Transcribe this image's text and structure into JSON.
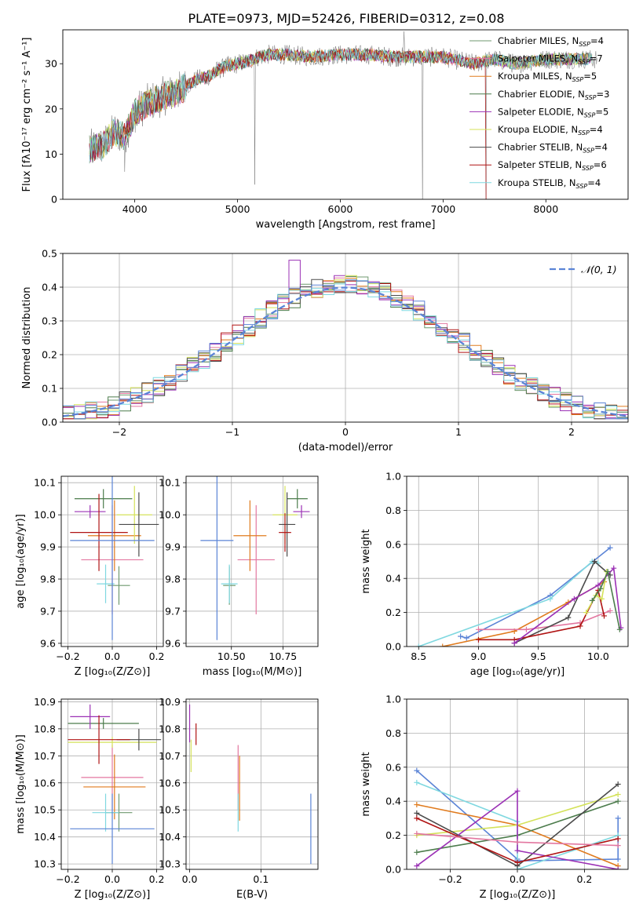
{
  "title": "PLATE=0973, MJD=52426, FIBERID=0312, z=0.08",
  "colors": {
    "Chabrier MILES": "#6f9a6f",
    "Salpeter MILES": "#e377a0",
    "Kroupa MILES": "#e07b1e",
    "Chabrier ELODIE": "#4c7c4c",
    "Salpeter ELODIE": "#9b31b5",
    "Kroupa ELODIE": "#d4e25a",
    "Chabrier STELIB": "#4a4a4a",
    "Salpeter STELIB": "#b01313",
    "Kroupa STELIB": "#7fd8e0",
    "blue_model": "#5b84d6"
  },
  "chart_data": [
    {
      "id": "spectrum",
      "type": "line",
      "title": "PLATE=0973, MJD=52426, FIBERID=0312, z=0.08",
      "xlabel": "wavelength [Angstrom, rest frame]",
      "ylabel": "Flux [fλ10⁻¹⁷ erg cm⁻² s⁻¹ A⁻¹]",
      "xlim": [
        3300,
        8800
      ],
      "ylim": [
        0,
        37.5
      ],
      "xticks": [
        4000,
        5000,
        6000,
        7000,
        8000
      ],
      "yticks": [
        0,
        10,
        20,
        30
      ],
      "grid": false,
      "legend_position": "upper right",
      "legend": [
        {
          "label": "Chabrier MILES, N",
          "sub": "SSP",
          "suffix": "=4"
        },
        {
          "label": "Salpeter MILES, N",
          "sub": "SSP",
          "suffix": "=7"
        },
        {
          "label": "Kroupa MILES, N",
          "sub": "SSP",
          "suffix": "=5"
        },
        {
          "label": "Chabrier ELODIE, N",
          "sub": "SSP",
          "suffix": "=3"
        },
        {
          "label": "Salpeter ELODIE, N",
          "sub": "SSP",
          "suffix": "=5"
        },
        {
          "label": "Kroupa ELODIE, N",
          "sub": "SSP",
          "suffix": "=4"
        },
        {
          "label": "Chabrier STELIB, N",
          "sub": "SSP",
          "suffix": "=4"
        },
        {
          "label": "Salpeter STELIB, N",
          "sub": "SSP",
          "suffix": "=6"
        },
        {
          "label": "Kroupa STELIB, N",
          "sub": "SSP",
          "suffix": "=4"
        }
      ],
      "continuum": [
        [
          3550,
          11
        ],
        [
          3700,
          12
        ],
        [
          3800,
          15
        ],
        [
          3900,
          14
        ],
        [
          4000,
          19
        ],
        [
          4100,
          21
        ],
        [
          4200,
          22
        ],
        [
          4300,
          23
        ],
        [
          4400,
          23.5
        ],
        [
          4500,
          25
        ],
        [
          4600,
          26.5
        ],
        [
          4700,
          27
        ],
        [
          4800,
          28.5
        ],
        [
          4900,
          29.5
        ],
        [
          5000,
          30
        ],
        [
          5100,
          30.5
        ],
        [
          5200,
          31.5
        ],
        [
          5300,
          32
        ],
        [
          5500,
          32
        ],
        [
          5700,
          31.5
        ],
        [
          6000,
          32
        ],
        [
          6300,
          32
        ],
        [
          6500,
          31.5
        ],
        [
          6700,
          31.5
        ],
        [
          7000,
          31.5
        ],
        [
          7200,
          30.5
        ],
        [
          7300,
          30
        ],
        [
          7500,
          31
        ],
        [
          7700,
          30
        ],
        [
          8000,
          31
        ],
        [
          8500,
          31
        ]
      ],
      "spikes": [
        [
          3900,
          -12
        ],
        [
          5170,
          -26
        ],
        [
          6800,
          -37
        ],
        [
          7420,
          -37
        ],
        [
          6620,
          6
        ]
      ]
    },
    {
      "id": "residuals",
      "type": "histogram",
      "xlabel": "(data-model)/error",
      "ylabel": "Normed distribution",
      "xlim": [
        -2.5,
        2.5
      ],
      "ylim": [
        0,
        0.5
      ],
      "xticks": [
        -2,
        -1,
        0,
        1,
        2
      ],
      "yticks": [
        0.0,
        0.1,
        0.2,
        0.3,
        0.4,
        0.5
      ],
      "grid": true,
      "legend_position": "upper right",
      "legend_label": "𝒩(0, 1)",
      "bins": 50
    },
    {
      "id": "age_vs_Z",
      "type": "errorbar",
      "xlabel": "Z [log₁₀(Z/Z⊙)]",
      "ylabel": "age  [log₁₀(age/yr)]",
      "xlim": [
        -0.23,
        0.23
      ],
      "ylim": [
        9.59,
        10.12
      ],
      "xticks": [
        -0.2,
        0.0,
        0.2
      ],
      "yticks": [
        9.6,
        9.7,
        9.8,
        9.9,
        10.0,
        10.1
      ],
      "grid": true,
      "points": [
        {
          "model": "Chabrier MILES",
          "x": 0.03,
          "xerr": 0.05,
          "y": 9.78,
          "yerr": 0.06
        },
        {
          "model": "Salpeter MILES",
          "x": 0.0,
          "xerr": 0.14,
          "y": 9.86,
          "yerr": 0.17
        },
        {
          "model": "Kroupa MILES",
          "x": 0.01,
          "xerr": 0.12,
          "y": 9.935,
          "yerr": 0.11
        },
        {
          "model": "Chabrier ELODIE",
          "x": -0.04,
          "xerr": 0.13,
          "y": 10.05,
          "yerr": 0.03
        },
        {
          "model": "Salpeter ELODIE",
          "x": -0.1,
          "xerr": 0.07,
          "y": 10.01,
          "yerr": 0.02
        },
        {
          "model": "Kroupa ELODIE",
          "x": 0.1,
          "xerr": 0.08,
          "y": 10.0,
          "yerr": 0.09
        },
        {
          "model": "Chabrier STELIB",
          "x": 0.12,
          "xerr": 0.09,
          "y": 9.97,
          "yerr": 0.1
        },
        {
          "model": "Salpeter STELIB",
          "x": -0.06,
          "xerr": 0.13,
          "y": 9.945,
          "yerr": 0.12
        },
        {
          "model": "Kroupa STELIB",
          "x": -0.03,
          "xerr": 0.04,
          "y": 9.785,
          "yerr": 0.06
        },
        {
          "model": "blue",
          "x": 0.0,
          "xerr": 0.19,
          "y": 9.92,
          "yerr": 0.31
        }
      ]
    },
    {
      "id": "age_vs_mass",
      "type": "errorbar",
      "xlabel": "mass [log₁₀(M/M⊙)]",
      "ylabel": "",
      "xlim": [
        10.28,
        10.92
      ],
      "ylim": [
        9.59,
        10.12
      ],
      "xticks": [
        10.5,
        10.75
      ],
      "yticks": [
        9.6,
        9.7,
        9.8,
        9.9,
        10.0,
        10.1
      ],
      "grid": true,
      "points": [
        {
          "model": "Chabrier MILES",
          "x": 10.49,
          "xerr": 0.03,
          "y": 9.78,
          "yerr": 0.06
        },
        {
          "model": "Salpeter MILES",
          "x": 10.62,
          "xerr": 0.09,
          "y": 9.86,
          "yerr": 0.17
        },
        {
          "model": "Kroupa MILES",
          "x": 10.59,
          "xerr": 0.08,
          "y": 9.935,
          "yerr": 0.11
        },
        {
          "model": "Chabrier ELODIE",
          "x": 10.82,
          "xerr": 0.05,
          "y": 10.05,
          "yerr": 0.03
        },
        {
          "model": "Salpeter ELODIE",
          "x": 10.84,
          "xerr": 0.04,
          "y": 10.01,
          "yerr": 0.02
        },
        {
          "model": "Kroupa ELODIE",
          "x": 10.76,
          "xerr": 0.06,
          "y": 10.0,
          "yerr": 0.09
        },
        {
          "model": "Chabrier STELIB",
          "x": 10.77,
          "xerr": 0.04,
          "y": 9.97,
          "yerr": 0.1
        },
        {
          "model": "Salpeter STELIB",
          "x": 10.76,
          "xerr": 0.03,
          "y": 9.945,
          "yerr": 0.06
        },
        {
          "model": "Kroupa STELIB",
          "x": 10.49,
          "xerr": 0.04,
          "y": 9.785,
          "yerr": 0.06
        },
        {
          "model": "blue",
          "x": 10.43,
          "xerr": 0.08,
          "y": 9.92,
          "yerr": 0.31
        }
      ]
    },
    {
      "id": "massweight_vs_age",
      "type": "line",
      "xlabel": "age  [log₁₀(age/yr)]",
      "ylabel": "mass weight",
      "xlim": [
        8.4,
        10.25
      ],
      "ylim": [
        0,
        1
      ],
      "xticks": [
        8.5,
        9.0,
        9.5,
        10.0
      ],
      "yticks": [
        0.0,
        0.2,
        0.4,
        0.6,
        0.8,
        1.0
      ],
      "grid": true,
      "series": [
        {
          "model": "blue",
          "x": [
            8.85,
            8.9,
            9.6,
            10.1
          ],
          "y": [
            0.06,
            0.05,
            0.3,
            0.58
          ]
        },
        {
          "model": "Kroupa STELIB",
          "x": [
            8.5,
            9.6,
            9.95,
            10.0
          ],
          "y": [
            0.0,
            0.28,
            0.5,
            0.49
          ]
        },
        {
          "model": "Kroupa MILES",
          "x": [
            8.7,
            9.3,
            9.75,
            10.05
          ],
          "y": [
            0.0,
            0.09,
            0.26,
            0.38
          ]
        },
        {
          "model": "Salpeter MILES",
          "x": [
            9.0,
            9.4,
            9.85,
            10.1
          ],
          "y": [
            0.1,
            0.1,
            0.14,
            0.21
          ]
        },
        {
          "model": "Chabrier STELIB",
          "x": [
            9.3,
            9.75,
            9.97,
            10.1
          ],
          "y": [
            0.02,
            0.17,
            0.5,
            0.42
          ]
        },
        {
          "model": "Salpeter STELIB",
          "x": [
            9.0,
            9.3,
            9.85,
            10.0,
            10.05
          ],
          "y": [
            0.04,
            0.04,
            0.12,
            0.33,
            0.18
          ]
        },
        {
          "model": "Salpeter ELODIE",
          "x": [
            9.3,
            9.8,
            10.0,
            10.13,
            10.19
          ],
          "y": [
            0.02,
            0.28,
            0.36,
            0.46,
            0.11
          ]
        },
        {
          "model": "Kroupa ELODIE",
          "x": [
            9.9,
            9.98,
            10.03,
            10.07
          ],
          "y": [
            0.2,
            0.3,
            0.28,
            0.44
          ]
        },
        {
          "model": "Chabrier ELODIE",
          "x": [
            9.95,
            10.02,
            10.08,
            10.18
          ],
          "y": [
            0.27,
            0.34,
            0.44,
            0.1
          ]
        }
      ]
    },
    {
      "id": "mass_vs_Z",
      "type": "errorbar",
      "xlabel": "Z [log₁₀(Z/Z⊙)]",
      "ylabel": "mass [log₁₀(M/M⊙)]",
      "xlim": [
        -0.23,
        0.23
      ],
      "ylim": [
        10.28,
        10.91
      ],
      "xticks": [
        -0.2,
        0.0,
        0.2
      ],
      "yticks": [
        10.3,
        10.4,
        10.5,
        10.6,
        10.7,
        10.8,
        10.9
      ],
      "grid": true,
      "points": [
        {
          "model": "Chabrier MILES",
          "x": 0.03,
          "xerr": 0.06,
          "y": 10.49,
          "yerr": 0.07
        },
        {
          "model": "Salpeter MILES",
          "x": 0.0,
          "xerr": 0.14,
          "y": 10.62,
          "yerr": 0.12
        },
        {
          "model": "Kroupa MILES",
          "x": 0.01,
          "xerr": 0.14,
          "y": 10.585,
          "yerr": 0.12
        },
        {
          "model": "Chabrier ELODIE",
          "x": -0.04,
          "xerr": 0.16,
          "y": 10.82,
          "yerr": 0.02
        },
        {
          "model": "Salpeter ELODIE",
          "x": -0.1,
          "xerr": 0.09,
          "y": 10.845,
          "yerr": 0.045
        },
        {
          "model": "Kroupa ELODIE",
          "x": 0.0,
          "xerr": 0.2,
          "y": 10.75,
          "yerr": 0.02
        },
        {
          "model": "Chabrier STELIB",
          "x": 0.12,
          "xerr": 0.1,
          "y": 10.76,
          "yerr": 0.04
        },
        {
          "model": "Salpeter STELIB",
          "x": -0.06,
          "xerr": 0.14,
          "y": 10.76,
          "yerr": 0.09
        },
        {
          "model": "Kroupa STELIB",
          "x": -0.03,
          "xerr": 0.06,
          "y": 10.49,
          "yerr": 0.07
        },
        {
          "model": "blue",
          "x": 0.0,
          "xerr": 0.19,
          "y": 10.43,
          "yerr": 0.13
        }
      ]
    },
    {
      "id": "mass_vs_EBV",
      "type": "errorbar",
      "xlabel": "E(B-V)",
      "ylabel": "",
      "xlim": [
        -0.005,
        0.18
      ],
      "ylim": [
        10.28,
        10.91
      ],
      "xticks": [
        0.0,
        0.1
      ],
      "yticks": [
        10.3,
        10.4,
        10.5,
        10.6,
        10.7,
        10.8,
        10.9
      ],
      "grid": true,
      "points": [
        {
          "model": "Salpeter ELODIE",
          "x": 0.0,
          "xerr": 0.0,
          "y": 10.82,
          "yerr": 0.07
        },
        {
          "model": "Kroupa ELODIE",
          "x": 0.002,
          "xerr": 0.0,
          "y": 10.7,
          "yerr": 0.06
        },
        {
          "model": "Salpeter STELIB",
          "x": 0.009,
          "xerr": 0.0,
          "y": 10.78,
          "yerr": 0.04
        },
        {
          "model": "Salpeter MILES",
          "x": 0.068,
          "xerr": 0.0,
          "y": 10.62,
          "yerr": 0.12
        },
        {
          "model": "Kroupa MILES",
          "x": 0.07,
          "xerr": 0.0,
          "y": 10.58,
          "yerr": 0.12
        },
        {
          "model": "Kroupa STELIB",
          "x": 0.068,
          "xerr": 0.0,
          "y": 10.49,
          "yerr": 0.07
        },
        {
          "model": "blue",
          "x": 0.17,
          "xerr": 0.0,
          "y": 10.43,
          "yerr": 0.13
        }
      ]
    },
    {
      "id": "massweight_vs_Z",
      "type": "line",
      "xlabel": "Z [log₁₀(Z/Z⊙)]",
      "ylabel": "mass weight",
      "xlim": [
        -0.33,
        0.33
      ],
      "ylim": [
        0,
        1
      ],
      "xticks": [
        -0.2,
        0.0,
        0.2
      ],
      "yticks": [
        0.0,
        0.2,
        0.4,
        0.6,
        0.8,
        1.0
      ],
      "grid": true,
      "series": [
        {
          "model": "blue",
          "x": [
            -0.3,
            0.0,
            0.0,
            0.3,
            0.3
          ],
          "y": [
            0.58,
            0.06,
            0.05,
            0.06,
            0.3
          ]
        },
        {
          "model": "Kroupa STELIB",
          "x": [
            -0.3,
            0.0,
            0.0,
            0.3
          ],
          "y": [
            0.51,
            0.28,
            0.0,
            0.2
          ]
        },
        {
          "model": "Kroupa MILES",
          "x": [
            -0.3,
            0.0,
            0.3
          ],
          "y": [
            0.38,
            0.26,
            0.02
          ]
        },
        {
          "model": "Kroupa ELODIE",
          "x": [
            -0.3,
            0.0,
            0.3
          ],
          "y": [
            0.2,
            0.26,
            0.44
          ]
        },
        {
          "model": "Chabrier ELODIE",
          "x": [
            -0.3,
            0.0,
            0.3
          ],
          "y": [
            0.1,
            0.2,
            0.4
          ]
        },
        {
          "model": "Chabrier STELIB",
          "x": [
            -0.3,
            0.0,
            0.3
          ],
          "y": [
            0.33,
            0.02,
            0.5
          ]
        },
        {
          "model": "Salpeter ELODIE",
          "x": [
            -0.3,
            0.0,
            0.0,
            0.3
          ],
          "y": [
            0.02,
            0.46,
            0.11,
            0.0
          ]
        },
        {
          "model": "Salpeter STELIB",
          "x": [
            -0.3,
            0.0,
            0.3
          ],
          "y": [
            0.3,
            0.04,
            0.18
          ]
        },
        {
          "model": "Salpeter MILES",
          "x": [
            -0.3,
            0.0,
            0.3
          ],
          "y": [
            0.21,
            0.16,
            0.14
          ]
        }
      ]
    }
  ]
}
